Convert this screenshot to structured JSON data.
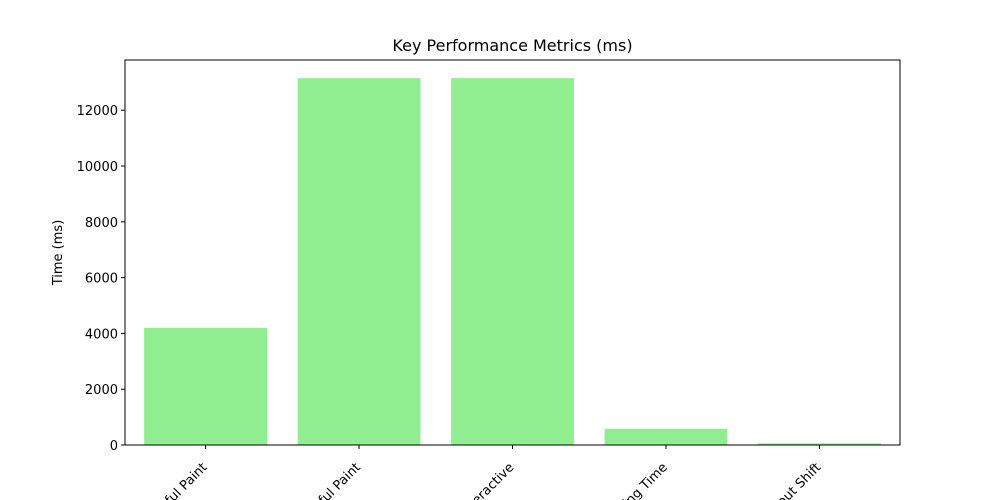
{
  "chart_data": {
    "type": "bar",
    "title": "Key Performance Metrics (ms)",
    "xlabel": "",
    "ylabel": "Time (ms)",
    "categories": [
      "ful Paint",
      "ful Paint",
      "eractive",
      "ing Time",
      "out Shift"
    ],
    "values": [
      4200,
      13150,
      13150,
      580,
      60
    ],
    "ylim": [
      0,
      13800
    ],
    "yticks": [
      0,
      2000,
      4000,
      6000,
      8000,
      10000,
      12000
    ],
    "bar_color": "#90ee90",
    "grid": false,
    "legend": "none"
  }
}
